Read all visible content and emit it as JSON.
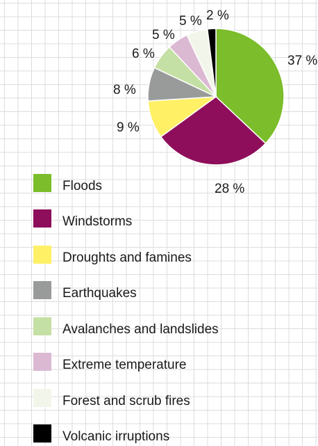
{
  "chart_data": {
    "type": "pie",
    "title": "",
    "categories": [
      "Floods",
      "Windstorms",
      "Droughts and famines",
      "Earthquakes",
      "Avalanches and landslides",
      "Extreme temperature",
      "Forest and scrub fires",
      "Volcanic irruptions"
    ],
    "values": [
      37,
      28,
      9,
      8,
      6,
      5,
      5,
      2
    ],
    "labels": [
      "37 %",
      "28 %",
      "9 %",
      "8 %",
      "6 %",
      "5 %",
      "5 %",
      "2 %"
    ],
    "colors": [
      "#7bbd2a",
      "#8e0e5b",
      "#fff066",
      "#999b9b",
      "#c5e0a4",
      "#dbb9d3",
      "#f2f6ea",
      "#000000"
    ],
    "legend_position": "bottom-left",
    "grid": false
  }
}
